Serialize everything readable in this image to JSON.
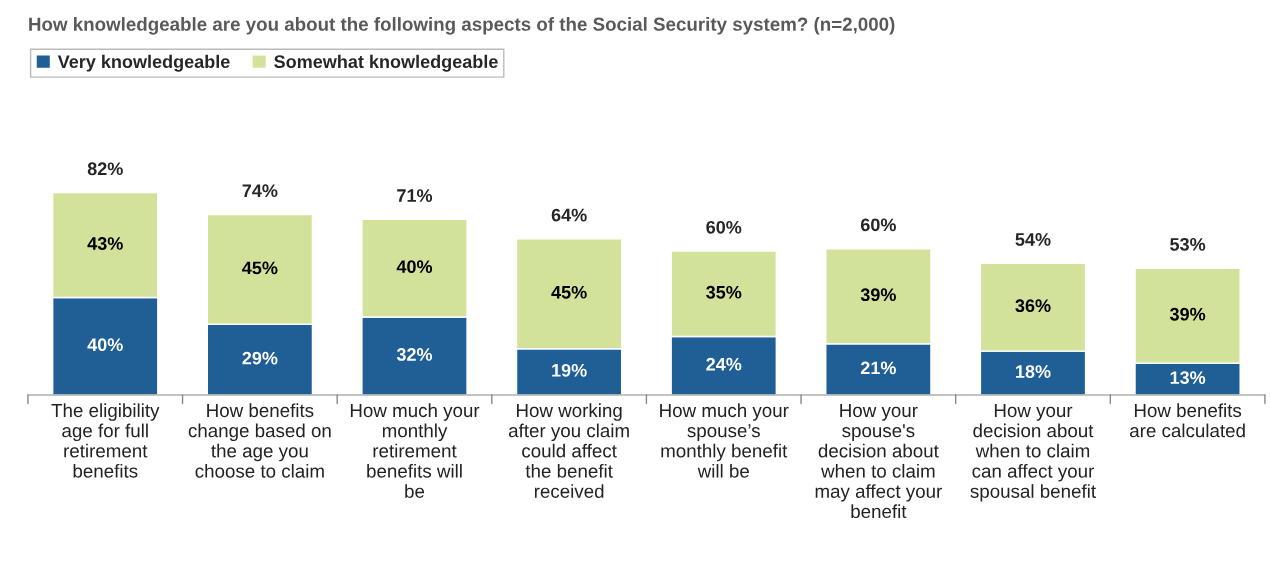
{
  "chart_data": {
    "type": "bar",
    "stacked": true,
    "title": "How knowledgeable are you about the following aspects of the Social Security system? (n=2,000)",
    "categories": [
      "The eligibility age for full retirement benefits",
      "How benefits change based on the age you choose to claim",
      "How much your monthly retirement benefits will be",
      "How working after you claim could affect the benefit received",
      "How much your spouse’s monthly benefit will be",
      "How your spouse's decision about when to claim may affect your benefit",
      "How your decision about when to claim can affect your spousal benefit",
      "How benefits are calculated"
    ],
    "series": [
      {
        "name": "Very knowledgeable",
        "color": "#1f5f95",
        "values": [
          40,
          29,
          32,
          19,
          24,
          21,
          18,
          13
        ],
        "value_labels": [
          "40%",
          "29%",
          "32%",
          "19%",
          "24%",
          "21%",
          "18%",
          "13%"
        ]
      },
      {
        "name": "Somewhat knowledgeable",
        "color": "#d3e29a",
        "values": [
          43,
          45,
          40,
          45,
          35,
          39,
          36,
          39
        ],
        "value_labels": [
          "43%",
          "45%",
          "40%",
          "45%",
          "35%",
          "39%",
          "36%",
          "39%"
        ]
      }
    ],
    "totals": [
      "82%",
      "74%",
      "71%",
      "64%",
      "60%",
      "60%",
      "54%",
      "53%"
    ],
    "tick_labels": "x",
    "grid": false,
    "legend": "top left"
  }
}
